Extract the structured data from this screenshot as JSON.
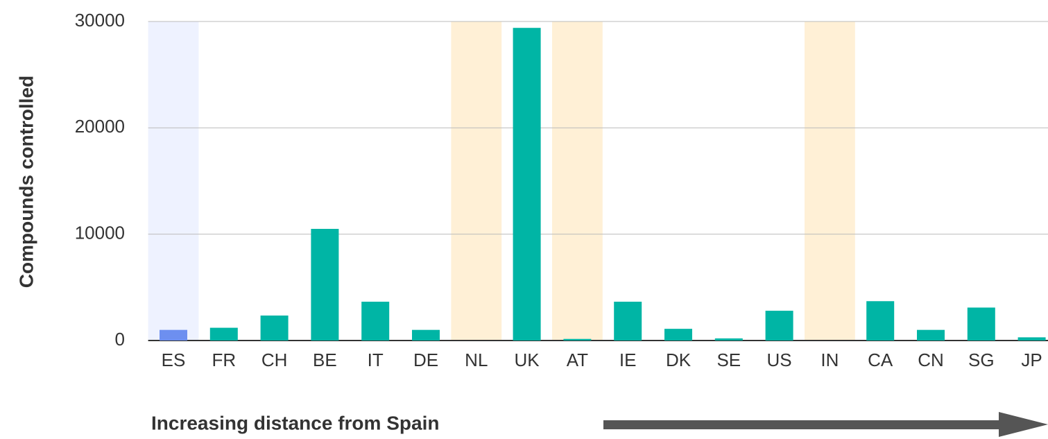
{
  "chart_data": {
    "type": "bar",
    "xlabel": "Increasing distance from Spain",
    "ylabel": "Compounds controlled",
    "categories": [
      "ES",
      "FR",
      "CH",
      "BE",
      "IT",
      "DE",
      "NL",
      "UK",
      "AT",
      "IE",
      "DK",
      "SE",
      "US",
      "IN",
      "CA",
      "CN",
      "SG",
      "JP"
    ],
    "values": [
      1000,
      1200,
      2350,
      10500,
      3650,
      1000,
      0,
      29400,
      150,
      3650,
      1100,
      200,
      2800,
      0,
      3700,
      1000,
      3100,
      300
    ],
    "colors": [
      "#6d8ff0",
      "#00b5a5",
      "#00b5a5",
      "#00b5a5",
      "#00b5a5",
      "#00b5a5",
      "#00b5a5",
      "#00b5a5",
      "#00b5a5",
      "#00b5a5",
      "#00b5a5",
      "#00b5a5",
      "#00b5a5",
      "#00b5a5",
      "#00b5a5",
      "#00b5a5",
      "#00b5a5",
      "#00b5a5"
    ],
    "highlights": [
      {
        "category": "ES",
        "color": "#eef2ff"
      },
      {
        "category": "NL",
        "color": "#fff0d6"
      },
      {
        "category": "AT",
        "color": "#fff0d6"
      },
      {
        "category": "IN",
        "color": "#fff0d6"
      }
    ],
    "ylim": [
      0,
      30000
    ],
    "yticks": [
      0,
      10000,
      20000,
      30000
    ],
    "grid": true
  }
}
